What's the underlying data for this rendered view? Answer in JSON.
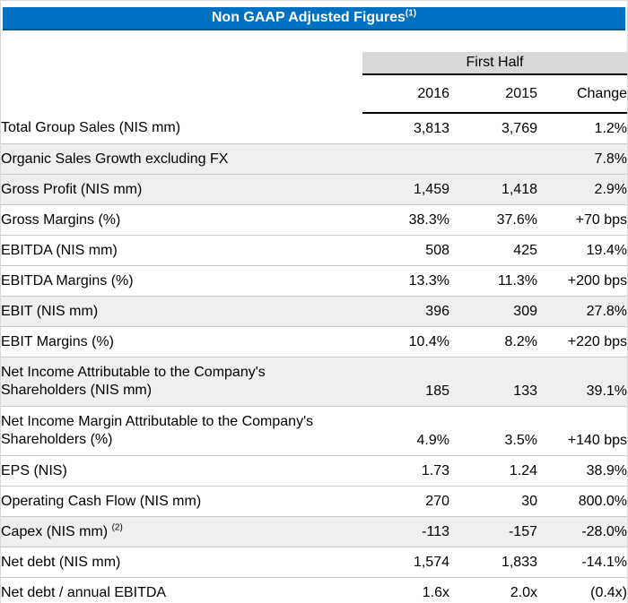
{
  "title": {
    "text": "Non GAAP Adjusted Figures",
    "footnote": "(1)"
  },
  "colors": {
    "title_blue": "#0070C0",
    "title_blue_edge": "#00568F",
    "group_band_gray": "#D9D9D9",
    "shaded_row_gray": "#EFEFEF",
    "separator_gray": "#C9C9C9"
  },
  "table": {
    "group_header": "First Half",
    "columns": [
      "2016",
      "2015",
      "Change"
    ],
    "rows": [
      {
        "label": "Total Group Sales (NIS mm)",
        "y2016": "3,813",
        "y2015": "3,769",
        "change": "1.2%",
        "shaded": false
      },
      {
        "label": "Organic Sales Growth excluding FX",
        "y2016": "",
        "y2015": "",
        "change": "7.8%",
        "shaded": true
      },
      {
        "label": "Gross Profit (NIS mm)",
        "y2016": "1,459",
        "y2015": "1,418",
        "change": "2.9%",
        "shaded": true
      },
      {
        "label": "Gross Margins (%)",
        "y2016": "38.3%",
        "y2015": "37.6%",
        "change": "+70 bps",
        "shaded": false
      },
      {
        "label": "EBITDA (NIS mm)",
        "y2016": "508",
        "y2015": "425",
        "change": "19.4%",
        "shaded": false
      },
      {
        "label": "EBITDA Margins (%)",
        "y2016": "13.3%",
        "y2015": "11.3%",
        "change": "+200 bps",
        "shaded": false
      },
      {
        "label": "EBIT (NIS mm)",
        "y2016": "396",
        "y2015": "309",
        "change": "27.8%",
        "shaded": true
      },
      {
        "label": "EBIT Margins (%)",
        "y2016": "10.4%",
        "y2015": "8.2%",
        "change": "+220 bps",
        "shaded": false
      },
      {
        "label": "Net Income Attributable to the Company's",
        "label2": "Shareholders (NIS mm)",
        "y2016": "185",
        "y2015": "133",
        "change": "39.1%",
        "shaded": true
      },
      {
        "label": "Net Income Margin Attributable to the Company's",
        "label2": "Shareholders (%)",
        "y2016": "4.9%",
        "y2015": "3.5%",
        "change": "+140 bps",
        "shaded": false
      },
      {
        "label": "EPS (NIS)",
        "y2016": "1.73",
        "y2015": "1.24",
        "change": "38.9%",
        "shaded": false
      },
      {
        "label": "Operating Cash Flow (NIS mm)",
        "y2016": "270",
        "y2015": "30",
        "change": "800.0%",
        "shaded": false
      },
      {
        "label": "Capex (NIS mm)",
        "sup": "(2)",
        "y2016": "-113",
        "y2015": "-157",
        "change": "-28.0%",
        "shaded": true
      },
      {
        "label": "Net debt (NIS mm)",
        "y2016": "1,574",
        "y2015": "1,833",
        "change": "-14.1%",
        "shaded": false
      },
      {
        "label": "Net debt / annual EBITDA",
        "y2016": "1.6x",
        "y2015": "2.0x",
        "change": "(0.4x)",
        "shaded": false
      }
    ]
  }
}
